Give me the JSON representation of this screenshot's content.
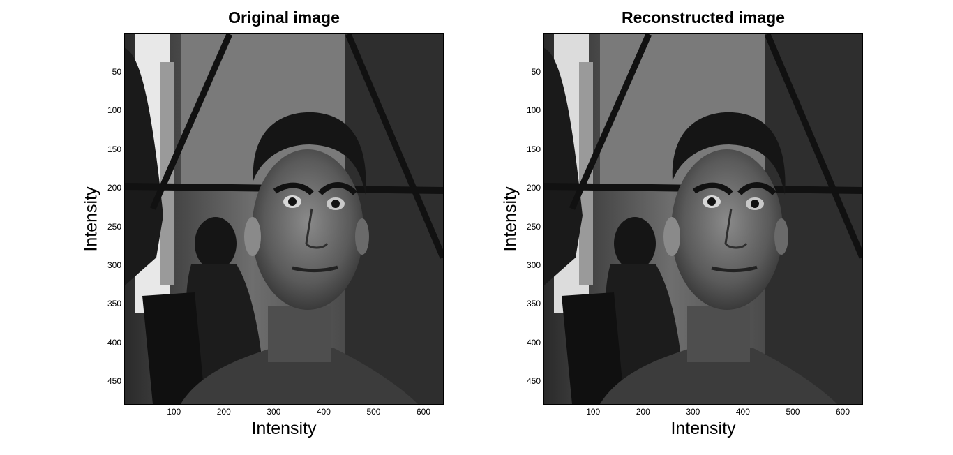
{
  "panels": [
    {
      "title": "Original image",
      "xlabel": "Intensity",
      "ylabel": "Intensity",
      "xticks": [
        "100",
        "200",
        "300",
        "400",
        "500",
        "600"
      ],
      "yticks": [
        "50",
        "100",
        "150",
        "200",
        "250",
        "300",
        "350",
        "400",
        "450"
      ],
      "image": "grayscale photograph of a man's face in a lab with a person seated in the background"
    },
    {
      "title": "Reconstructed image",
      "xlabel": "Intensity",
      "ylabel": "Intensity",
      "xticks": [
        "100",
        "200",
        "300",
        "400",
        "500",
        "600"
      ],
      "yticks": [
        "50",
        "100",
        "150",
        "200",
        "250",
        "300",
        "350",
        "400",
        "450"
      ],
      "image": "grayscale photograph of a man's face in a lab with a person seated in the background"
    }
  ]
}
